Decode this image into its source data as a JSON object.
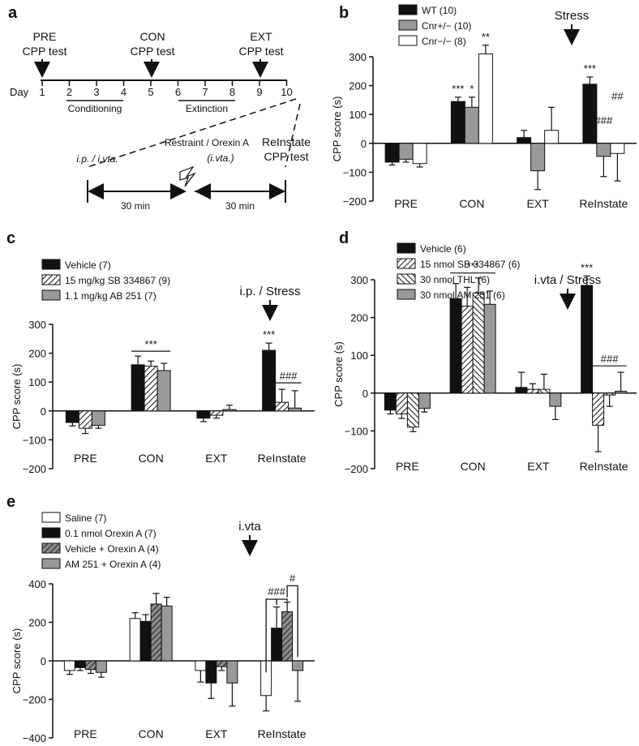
{
  "panels": {
    "a": {
      "letter": "a",
      "day_label": "Day",
      "days": [
        "1",
        "2",
        "3",
        "4",
        "5",
        "6",
        "7",
        "8",
        "9",
        "10"
      ],
      "pre": [
        "PRE",
        "CPP test"
      ],
      "con": [
        "CON",
        "CPP test"
      ],
      "ext": [
        "EXT",
        "CPP test"
      ],
      "conditioning": "Conditioning",
      "extinction": "Extinction",
      "route": "i.p. / i.vta.",
      "restraint": "Restraint / Orexin A",
      "ivta": "(i.vta.)",
      "reinstate": [
        "ReInstate",
        "CPP test"
      ],
      "min1": "30 min",
      "min2": "30 min"
    },
    "b": {
      "letter": "b",
      "arrow_label": "Stress"
    },
    "c": {
      "letter": "c",
      "arrow_label": "i.p. / Stress"
    },
    "d": {
      "letter": "d",
      "arrow_label": "i.vta / Stress"
    },
    "e": {
      "letter": "e",
      "arrow_label": "i.vta"
    }
  },
  "chart_data": [
    {
      "id": "b",
      "type": "bar",
      "ylabel": "CPP score (s)",
      "ylim": [
        -200,
        300
      ],
      "yticks": [
        -200,
        -100,
        0,
        100,
        200,
        300
      ],
      "categories": [
        "PRE",
        "CON",
        "EXT",
        "ReInstate"
      ],
      "series": [
        {
          "name": "WT (10)",
          "style": "black",
          "values": [
            -65,
            145,
            20,
            205
          ],
          "err": [
            10,
            15,
            25,
            25
          ]
        },
        {
          "name": "Cnr+/− (10)",
          "style": "gray",
          "values": [
            -55,
            125,
            -95,
            -45
          ],
          "err": [
            10,
            35,
            65,
            70
          ]
        },
        {
          "name": "Cnr−/− (8)",
          "style": "white",
          "values": [
            -70,
            310,
            45,
            -35
          ],
          "err": [
            12,
            30,
            80,
            95
          ]
        }
      ],
      "annotations": [
        {
          "text": "***",
          "cat": 1,
          "series": 0
        },
        {
          "text": "*",
          "cat": 1,
          "series": 1
        },
        {
          "text": "**",
          "cat": 1,
          "series": 2
        },
        {
          "text": "***",
          "cat": 3,
          "series": 0
        },
        {
          "text": "###",
          "cat": 3,
          "series": 1
        },
        {
          "text": "##",
          "cat": 3,
          "series": 2
        }
      ]
    },
    {
      "id": "c",
      "type": "bar",
      "ylabel": "CPP score (s)",
      "ylim": [
        -200,
        300
      ],
      "yticks": [
        -200,
        -100,
        0,
        100,
        200,
        300
      ],
      "categories": [
        "PRE",
        "CON",
        "EXT",
        "ReInstate"
      ],
      "series": [
        {
          "name": "Vehicle (7)",
          "style": "black",
          "values": [
            -40,
            160,
            -25,
            210
          ],
          "err": [
            12,
            30,
            12,
            25
          ]
        },
        {
          "name": "15 mg/kg SB 334867 (9)",
          "style": "hatch",
          "values": [
            -60,
            155,
            -15,
            30
          ],
          "err": [
            18,
            18,
            10,
            45
          ]
        },
        {
          "name": "1.1 mg/kg AB 251 (7)",
          "style": "gray",
          "values": [
            -50,
            140,
            5,
            10
          ],
          "err": [
            10,
            25,
            15,
            60
          ]
        }
      ],
      "annotations": [
        {
          "text": "***",
          "cat": 1,
          "bracket": true
        },
        {
          "text": "***",
          "cat": 3,
          "series": 0
        },
        {
          "text": "###",
          "cat": 3,
          "bracket23": true
        }
      ]
    },
    {
      "id": "d",
      "type": "bar",
      "ylabel": "CPP score (s)",
      "ylim": [
        -200,
        300
      ],
      "yticks": [
        -200,
        -100,
        0,
        100,
        200,
        300
      ],
      "categories": [
        "PRE",
        "CON",
        "EXT",
        "ReInstate"
      ],
      "series": [
        {
          "name": "Vehicle (6)",
          "style": "black",
          "values": [
            -45,
            250,
            15,
            285
          ],
          "err": [
            10,
            40,
            40,
            25
          ]
        },
        {
          "name": "15 nmol SB 334867 (6)",
          "style": "hatch",
          "values": [
            -55,
            230,
            10,
            -85
          ],
          "err": [
            12,
            50,
            15,
            70
          ]
        },
        {
          "name": "30 nmol THL (6)",
          "style": "hatch2",
          "values": [
            -90,
            265,
            10,
            -5
          ],
          "err": [
            12,
            40,
            40,
            30
          ]
        },
        {
          "name": "30 nmol AM 251 (6)",
          "style": "gray",
          "values": [
            -40,
            235,
            -35,
            5
          ],
          "err": [
            10,
            35,
            35,
            50
          ]
        }
      ],
      "annotations": [
        {
          "text": "***",
          "cat": 1,
          "bracket": true
        },
        {
          "text": "***",
          "cat": 3,
          "series": 0
        },
        {
          "text": "###",
          "cat": 3,
          "bracket23": true
        }
      ]
    },
    {
      "id": "e",
      "type": "bar",
      "ylabel": "CPP score (s)",
      "ylim": [
        -400,
        400
      ],
      "yticks": [
        -400,
        -200,
        0,
        200,
        400
      ],
      "categories": [
        "PRE",
        "CON",
        "EXT",
        "ReInstate"
      ],
      "series": [
        {
          "name": "Saline (7)",
          "style": "white",
          "values": [
            -50,
            220,
            -50,
            -180
          ],
          "err": [
            20,
            30,
            60,
            80
          ]
        },
        {
          "name": "0.1 nmol Orexin A (7)",
          "style": "black",
          "values": [
            -35,
            205,
            -115,
            170
          ],
          "err": [
            15,
            35,
            80,
            110
          ]
        },
        {
          "name": "Vehicle + Orexin A (4)",
          "style": "darkhatch",
          "values": [
            -45,
            295,
            -30,
            255
          ],
          "err": [
            20,
            55,
            20,
            50
          ]
        },
        {
          "name": "AM 251 + Orexin A (4)",
          "style": "gray",
          "values": [
            -60,
            285,
            -115,
            -50
          ],
          "err": [
            25,
            45,
            120,
            160
          ]
        }
      ],
      "annotations": [
        {
          "text": "###",
          "cat": 3,
          "e1": true
        },
        {
          "text": "#",
          "cat": 3,
          "e2": true
        }
      ]
    }
  ]
}
